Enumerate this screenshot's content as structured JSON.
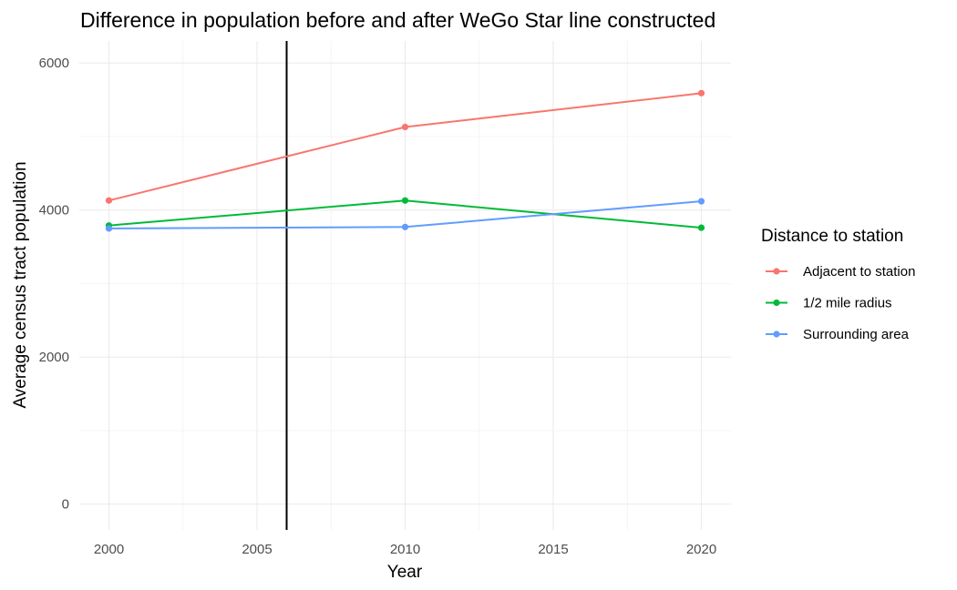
{
  "chart_data": {
    "type": "line",
    "title": "Difference in population before and after WeGo Star line constructed",
    "xlabel": "Year",
    "ylabel": "Average census tract population",
    "x": [
      2000,
      2010,
      2020
    ],
    "xlim": [
      1999,
      2021
    ],
    "ylim": [
      -350,
      6300
    ],
    "xticks": [
      2000,
      2005,
      2010,
      2015,
      2020
    ],
    "yticks": [
      0,
      2000,
      4000,
      6000
    ],
    "grid": true,
    "vline": 2006,
    "legend": {
      "title": "Distance to station",
      "position": "right"
    },
    "series": [
      {
        "name": "Adjacent to station",
        "color": "#F8766D",
        "values": [
          4130,
          5130,
          5590
        ]
      },
      {
        "name": "1/2 mile radius",
        "color": "#00BA38",
        "values": [
          3790,
          4130,
          3760
        ]
      },
      {
        "name": "Surrounding area",
        "color": "#619CFF",
        "values": [
          3750,
          3770,
          4120
        ]
      }
    ]
  }
}
